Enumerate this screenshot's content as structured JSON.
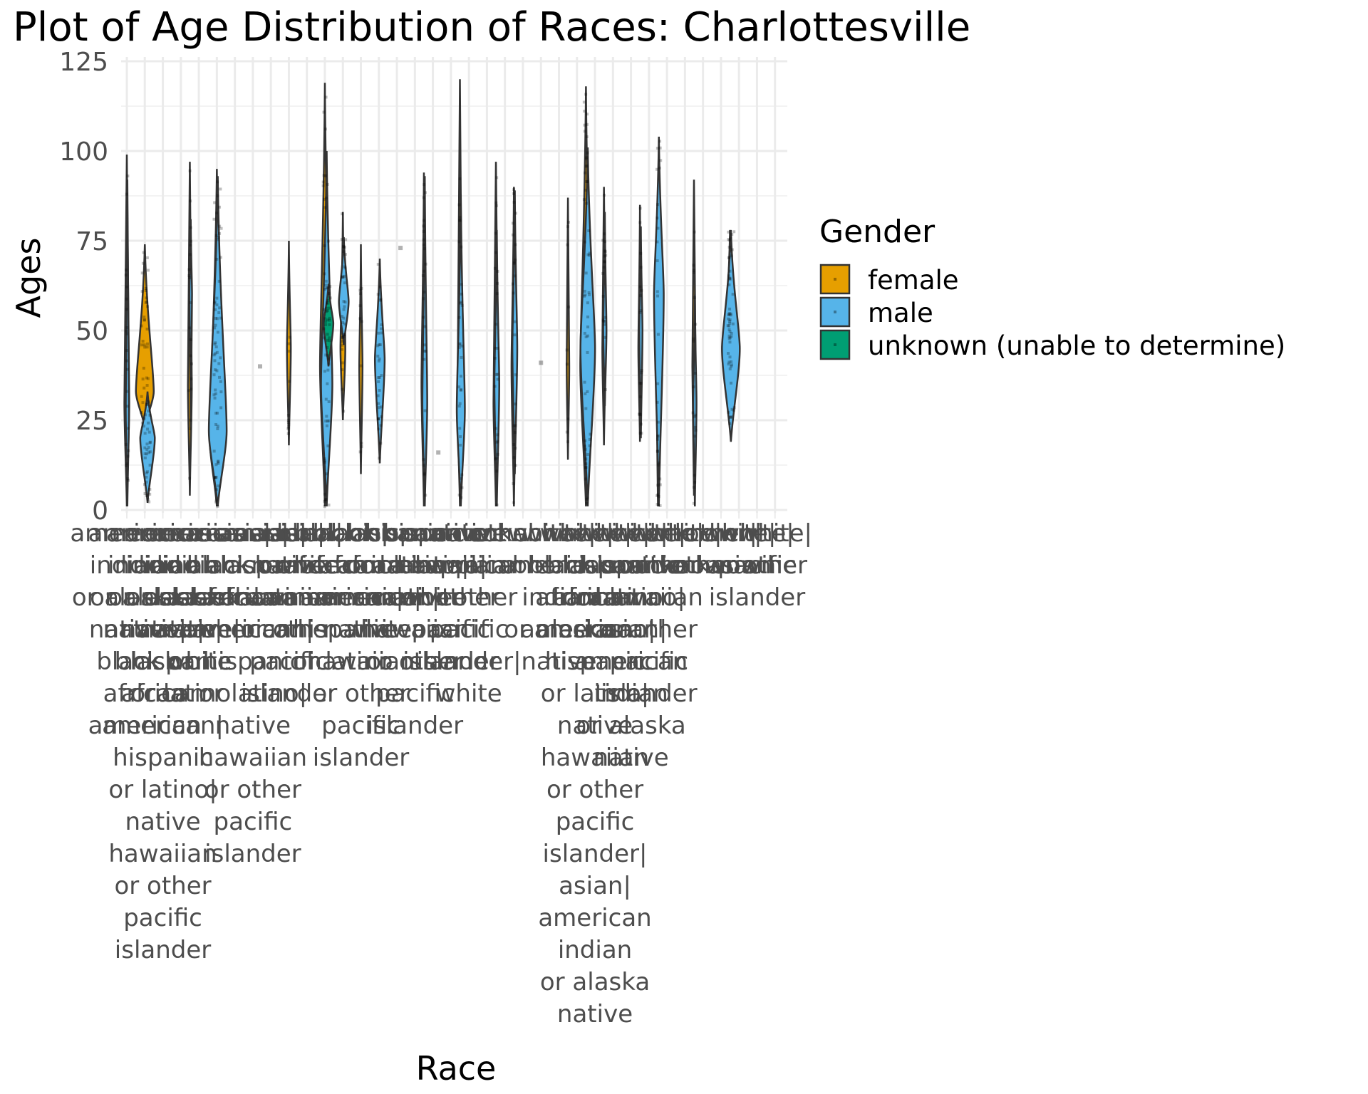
{
  "chart_data": {
    "type": "violin",
    "title": "Plot of Age Distribution of Races: Charlottesville",
    "xlabel": "Race",
    "ylabel": "Ages",
    "ylim": [
      0,
      125
    ],
    "y_ticks": [
      0,
      25,
      50,
      75,
      100,
      125
    ],
    "grid": true,
    "legend": {
      "title": "Gender",
      "placement": "right",
      "entries": [
        {
          "name": "female",
          "color": "#E69F00"
        },
        {
          "name": "male",
          "color": "#56B4E9"
        },
        {
          "name": "unknown (unable to determine)",
          "color": "#009E73"
        }
      ]
    },
    "categories": [
      "american indian or alaska native",
      "american indian or alaska native|black or african american",
      "american indian or alaska native|black or african american|hispanic or latino|native hawaiian or other pacific islander",
      "american indian or alaska native|hispanic or latino",
      "american indian or alaska native|white",
      "asian",
      "asian|black or african american",
      "asian|black or african american|hispanic or latino|native hawaiian or other pacific islander",
      "asian|hispanic or latino",
      "asian|native hawaiian or other pacific islander",
      "asian|white",
      "black or african american",
      "black or african american|hispanic or latino",
      "black or african american|native hawaiian or other pacific islander",
      "black or african american|white",
      "hispanic or latino",
      "hispanic or latino|native hawaiian or other pacific islander",
      "hispanic or latino|white",
      "native hawaiian or other pacific islander",
      "native hawaiian or other pacific islander|white",
      "not applicable",
      "other",
      "unknown",
      "white",
      "white|american indian or alaska native",
      "white|black or african american",
      "white|black or african american|hispanic or latino|native hawaiian or other pacific islander|asian|american indian or alaska native",
      "white|hispanic or latino",
      "white|hispanic or latino|asian|american indian or alaska native",
      "white|native hawaiian or other pacific islander",
      "white|other",
      "white|unknown",
      "unknown|other",
      "other|unknown",
      "white|asian",
      "white|pacific islander",
      "white|other"
    ],
    "x_label_lines": [
      [
        "american",
        "indian",
        "or alaska",
        "native"
      ],
      [
        "american",
        "indian",
        "or alaska",
        "native|",
        "black or",
        "african",
        "american"
      ],
      [
        "american",
        "indian",
        "or alaska",
        "native|",
        "black or",
        "african",
        "american|",
        "hispanic",
        "or latino|",
        "native",
        "hawaiian",
        "or other",
        "pacific",
        "islander"
      ],
      [
        "american",
        "indian",
        "or alaska",
        "native|",
        "hispanic",
        "or latino"
      ],
      [
        "american",
        "indian",
        "or alaska",
        "native|",
        "white"
      ],
      [
        "asian"
      ],
      [
        "asian|",
        "black or",
        "african",
        "american"
      ],
      [
        "asian|",
        "black or",
        "african",
        "american|",
        "hispanic",
        "or latino|",
        "native",
        "hawaiian",
        "or other",
        "pacific",
        "islander"
      ],
      [
        "asian|",
        "hispanic",
        "or latino"
      ],
      [
        "asian|",
        "native",
        "hawaiian",
        "or other",
        "pacific",
        "islander"
      ],
      [
        "asian|",
        "white"
      ],
      [
        "black or",
        "african",
        "american"
      ],
      [
        "black or",
        "african",
        "american|",
        "hispanic",
        "or latino"
      ],
      [
        "black or",
        "african",
        "american|",
        "native",
        "hawaiian",
        "or other",
        "pacific",
        "islander"
      ],
      [
        "black or",
        "african",
        "american|",
        "white"
      ],
      [
        "hispanic",
        "or latino"
      ],
      [
        "hispanic",
        "or latino|",
        "native",
        "hawaiian",
        "or other",
        "pacific",
        "islander"
      ],
      [
        "hispanic",
        "or latino|",
        "white"
      ],
      [
        "native",
        "hawaiian",
        "or other",
        "pacific",
        "islander"
      ],
      [
        "native",
        "hawaiian",
        "or other",
        "pacific",
        "islander|",
        "white"
      ],
      [
        "not",
        "applicable"
      ],
      [
        "other"
      ],
      [
        "unknown"
      ],
      [
        "white"
      ],
      [
        "white|",
        "american",
        "indian",
        "or alaska",
        "native"
      ],
      [
        "white|",
        "black or",
        "african",
        "american"
      ],
      [
        "white|",
        "black or",
        "african",
        "american|",
        "hispanic",
        "or latino|",
        "native",
        "hawaiian",
        "or other",
        "pacific",
        "islander|",
        "asian|",
        "american",
        "indian",
        "or alaska",
        "native"
      ],
      [
        "white|",
        "hispanic",
        "or latino"
      ],
      [
        "white|",
        "hispanic",
        "or latino|",
        "asian|",
        "american",
        "indian",
        "or alaska",
        "native"
      ],
      [
        "white|",
        "native",
        "hawaiian",
        "or other",
        "pacific",
        "islander"
      ],
      [
        "white|",
        "other"
      ],
      [
        "white|",
        "unknown"
      ],
      [
        "unknown|",
        "other"
      ],
      [
        "other|",
        "unknown"
      ],
      [
        "white|",
        "asian"
      ],
      [
        "white|",
        "pacific",
        "islander"
      ],
      [
        "white|",
        "other"
      ]
    ],
    "violins": [
      {
        "x": 1,
        "gender": "female",
        "min": 1,
        "max": 99,
        "median": 30,
        "width": 0.15
      },
      {
        "x": 1.03,
        "gender": "male",
        "min": 1,
        "max": 92,
        "median": 28,
        "width": 0.1
      },
      {
        "x": 2,
        "gender": "female",
        "min": 23,
        "max": 74,
        "median": 33,
        "width": 0.55
      },
      {
        "x": 2.15,
        "gender": "male",
        "min": 2,
        "max": 33,
        "median": 20,
        "width": 0.45
      },
      {
        "x": 4.5,
        "gender": "female",
        "min": 4,
        "max": 97,
        "median": 35,
        "width": 0.12
      },
      {
        "x": 4.55,
        "gender": "male",
        "min": 23,
        "max": 81,
        "median": 60,
        "width": 0.08
      },
      {
        "x": 6,
        "gender": "female",
        "min": 1,
        "max": 95,
        "median": 20,
        "width": 0.45
      },
      {
        "x": 6.05,
        "gender": "male",
        "min": 1,
        "max": 93,
        "median": 22,
        "width": 0.55
      },
      {
        "x": 10,
        "gender": "female",
        "min": 18,
        "max": 75,
        "median": 45,
        "width": 0.12
      },
      {
        "x": 12,
        "gender": "female",
        "min": 1,
        "max": 119,
        "median": 40,
        "width": 0.3
      },
      {
        "x": 12.1,
        "gender": "male",
        "min": 1,
        "max": 100,
        "median": 35,
        "width": 0.35
      },
      {
        "x": 12.2,
        "gender": "unknown (unable to determine)",
        "min": 40,
        "max": 63,
        "median": 52,
        "width": 0.3
      },
      {
        "x": 13,
        "gender": "female",
        "min": 25,
        "max": 83,
        "median": 45,
        "width": 0.15
      },
      {
        "x": 13.05,
        "gender": "male",
        "min": 46,
        "max": 76,
        "median": 58,
        "width": 0.3
      },
      {
        "x": 14,
        "gender": "female",
        "min": 10,
        "max": 74,
        "median": 40,
        "width": 0.1
      },
      {
        "x": 15,
        "gender": "female",
        "min": 21,
        "max": 58,
        "median": 38,
        "width": 0.1
      },
      {
        "x": 15.05,
        "gender": "male",
        "min": 13,
        "max": 70,
        "median": 42,
        "width": 0.3
      },
      {
        "x": 17.5,
        "gender": "female",
        "min": 1,
        "max": 94,
        "median": 35,
        "width": 0.15
      },
      {
        "x": 17.55,
        "gender": "male",
        "min": 1,
        "max": 93,
        "median": 30,
        "width": 0.15
      },
      {
        "x": 19.5,
        "gender": "female",
        "min": 1,
        "max": 120,
        "median": 30,
        "width": 0.15
      },
      {
        "x": 19.55,
        "gender": "male",
        "min": 1,
        "max": 88,
        "median": 28,
        "width": 0.25
      },
      {
        "x": 21.5,
        "gender": "female",
        "min": 1,
        "max": 97,
        "median": 30,
        "width": 0.15
      },
      {
        "x": 21.55,
        "gender": "male",
        "min": 1,
        "max": 78,
        "median": 35,
        "width": 0.15
      },
      {
        "x": 22.5,
        "gender": "female",
        "min": 1,
        "max": 90,
        "median": 40,
        "width": 0.15
      },
      {
        "x": 22.55,
        "gender": "male",
        "min": 10,
        "max": 89,
        "median": 45,
        "width": 0.15
      },
      {
        "x": 25.5,
        "gender": "female",
        "min": 14,
        "max": 87,
        "median": 40,
        "width": 0.08
      },
      {
        "x": 26.5,
        "gender": "female",
        "min": 1,
        "max": 118,
        "median": 40,
        "width": 0.35
      },
      {
        "x": 26.6,
        "gender": "male",
        "min": 1,
        "max": 101,
        "median": 45,
        "width": 0.45
      },
      {
        "x": 27.5,
        "gender": "female",
        "min": 18,
        "max": 90,
        "median": 45,
        "width": 0.1
      },
      {
        "x": 27.55,
        "gender": "male",
        "min": 29,
        "max": 83,
        "median": 50,
        "width": 0.1
      },
      {
        "x": 29.5,
        "gender": "female",
        "min": 19,
        "max": 85,
        "median": 45,
        "width": 0.1
      },
      {
        "x": 29.55,
        "gender": "male",
        "min": 20,
        "max": 79,
        "median": 50,
        "width": 0.1
      },
      {
        "x": 30.5,
        "gender": "female",
        "min": 1,
        "max": 80,
        "median": 40,
        "width": 0.1
      },
      {
        "x": 30.55,
        "gender": "male",
        "min": 1,
        "max": 104,
        "median": 60,
        "width": 0.3
      },
      {
        "x": 32.5,
        "gender": "female",
        "min": 4,
        "max": 92,
        "median": 40,
        "width": 0.1
      },
      {
        "x": 32.55,
        "gender": "male",
        "min": 1,
        "max": 60,
        "median": 30,
        "width": 0.1
      },
      {
        "x": 34.5,
        "gender": "female",
        "min": 38,
        "max": 78,
        "median": 50,
        "width": 0.25
      },
      {
        "x": 34.55,
        "gender": "male",
        "min": 19,
        "max": 78,
        "median": 45,
        "width": 0.55
      }
    ],
    "single_points": [
      {
        "x": 8.4,
        "y": 40
      },
      {
        "x": 16.2,
        "y": 73
      },
      {
        "x": 18.3,
        "y": 16
      },
      {
        "x": 24.0,
        "y": 41
      }
    ]
  }
}
